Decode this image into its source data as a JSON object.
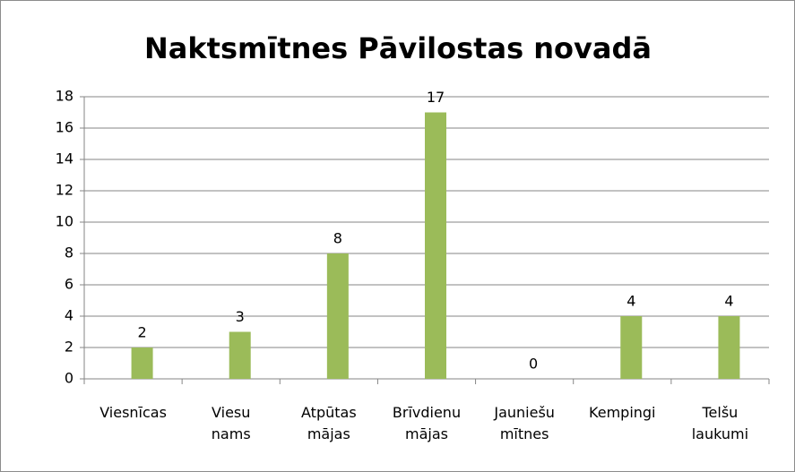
{
  "chart_data": {
    "type": "bar",
    "title": "Naktsmītnes Pāvilostas novadā",
    "categories": [
      "Viesnīcas",
      "Viesu nams",
      "Atpūtas mājas",
      "Brīvdienu mājas",
      "Jauniešu mītnes",
      "Kempingi",
      "Telšu laukumi"
    ],
    "values": [
      2,
      3,
      8,
      17,
      0,
      4,
      4
    ],
    "color": "#9bbb59",
    "ylim": [
      0,
      18
    ],
    "yticks": [
      0,
      2,
      4,
      6,
      8,
      10,
      12,
      14,
      16,
      18
    ],
    "grid": true
  }
}
